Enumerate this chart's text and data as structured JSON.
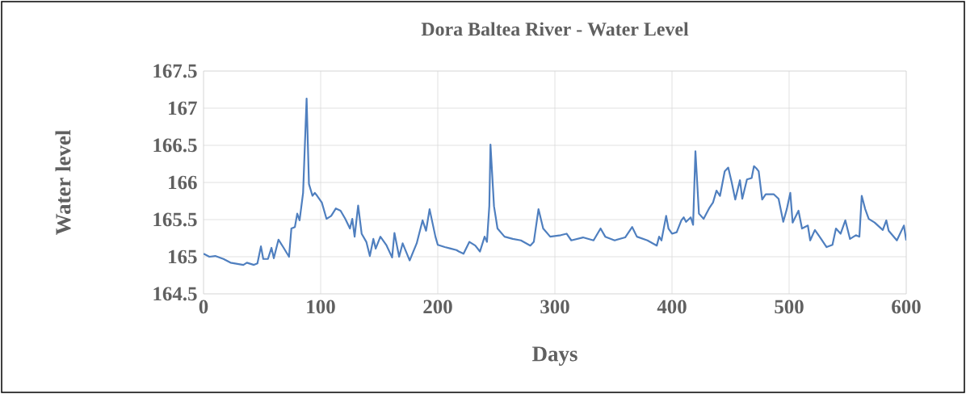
{
  "chart_data": {
    "type": "line",
    "title": "Dora Baltea River - Water Level",
    "xlabel": "Days",
    "ylabel": "Water level",
    "xlim": [
      0,
      600
    ],
    "xticks": [
      0,
      100,
      200,
      300,
      400,
      500,
      600
    ],
    "ylim": [
      164.5,
      167.5
    ],
    "yticks": [
      164.5,
      165,
      165.5,
      166,
      166.5,
      167,
      167.5
    ],
    "grid": true,
    "marker": "none",
    "line_style": "solid",
    "series": [
      {
        "color": "#4f7fbf",
        "x": [
          0,
          5,
          10,
          17,
          23,
          34,
          37,
          43,
          46,
          49,
          51,
          55,
          58,
          60,
          64,
          68,
          73,
          75,
          78,
          80,
          82,
          85,
          88,
          90,
          93,
          95,
          97,
          101,
          105,
          109,
          113,
          117,
          121,
          125,
          127,
          129,
          132,
          135,
          139,
          142,
          145,
          147,
          151,
          156,
          161,
          163,
          167,
          170,
          176,
          182,
          187,
          190,
          193,
          198,
          200,
          206,
          211,
          216,
          218,
          222,
          227,
          232,
          236,
          240,
          242,
          244,
          245,
          248,
          251,
          257,
          264,
          271,
          279,
          282,
          286,
          290,
          296,
          305,
          310,
          314,
          324,
          333,
          339,
          343,
          351,
          360,
          366,
          370,
          379,
          387,
          389,
          391,
          395,
          397,
          400,
          404,
          408,
          410,
          412,
          416,
          418,
          420,
          423,
          427,
          432,
          435,
          438,
          441,
          445,
          448,
          451,
          454,
          458,
          460,
          464,
          468,
          470,
          472,
          474,
          477,
          480,
          487,
          491,
          495,
          498,
          501,
          503,
          508,
          511,
          516,
          518,
          522,
          526,
          532,
          537,
          540,
          544,
          548,
          552,
          557,
          560,
          562,
          565,
          568,
          573,
          580,
          583,
          585,
          592,
          598,
          600
        ],
        "values": [
          165.04,
          165.0,
          165.01,
          164.97,
          164.92,
          164.89,
          164.92,
          164.89,
          164.91,
          165.14,
          164.97,
          164.97,
          165.12,
          164.98,
          165.23,
          165.13,
          165.0,
          165.38,
          165.4,
          165.58,
          165.49,
          165.86,
          167.13,
          165.98,
          165.82,
          165.86,
          165.82,
          165.73,
          165.51,
          165.55,
          165.65,
          165.62,
          165.51,
          165.38,
          165.51,
          165.27,
          165.69,
          165.31,
          165.2,
          165.01,
          165.24,
          165.11,
          165.27,
          165.16,
          164.99,
          165.32,
          165.0,
          165.18,
          164.95,
          165.18,
          165.49,
          165.35,
          165.64,
          165.27,
          165.16,
          165.13,
          165.11,
          165.09,
          165.07,
          165.04,
          165.2,
          165.15,
          165.07,
          165.27,
          165.2,
          165.68,
          166.51,
          165.68,
          165.38,
          165.27,
          165.24,
          165.22,
          165.15,
          165.2,
          165.64,
          165.38,
          165.27,
          165.29,
          165.31,
          165.22,
          165.26,
          165.22,
          165.38,
          165.27,
          165.22,
          165.26,
          165.4,
          165.27,
          165.22,
          165.15,
          165.27,
          165.22,
          165.55,
          165.38,
          165.31,
          165.33,
          165.49,
          165.53,
          165.47,
          165.53,
          165.43,
          166.42,
          165.58,
          165.51,
          165.66,
          165.73,
          165.89,
          165.82,
          166.15,
          166.2,
          166.0,
          165.77,
          166.03,
          165.78,
          166.04,
          166.06,
          166.22,
          166.19,
          166.15,
          165.77,
          165.84,
          165.84,
          165.78,
          165.47,
          165.64,
          165.86,
          165.46,
          165.62,
          165.38,
          165.42,
          165.22,
          165.36,
          165.27,
          165.13,
          165.16,
          165.38,
          165.31,
          165.49,
          165.24,
          165.29,
          165.27,
          165.82,
          165.64,
          165.51,
          165.46,
          165.36,
          165.49,
          165.35,
          165.22,
          165.42,
          165.22
        ]
      }
    ]
  }
}
